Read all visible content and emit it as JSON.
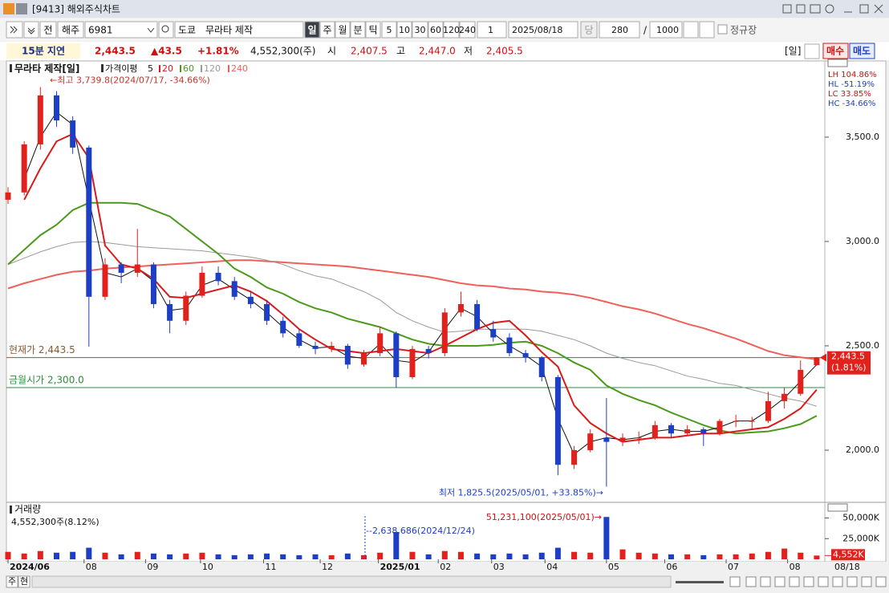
{
  "window": {
    "title": "[9413] 해외주식차트"
  },
  "toolbar": {
    "prev": "전",
    "market": "해주",
    "code": "6981",
    "exchange": "도쿄",
    "name": "무라타 제작",
    "periods": [
      "일",
      "주",
      "월",
      "분",
      "틱"
    ],
    "intervals": [
      "5",
      "10",
      "30",
      "60",
      "120",
      "240"
    ],
    "unit": "1",
    "date": "2025/08/18",
    "today": "당",
    "count": "280",
    "slash": "/",
    "max": "1000",
    "session": "정규장"
  },
  "quote": {
    "delay": "15분 지연",
    "price": "2,443.5",
    "change": "▲43.5",
    "rate": "+1.81%",
    "volume": "4,552,300(주)",
    "open_label": "시",
    "open": "2,407.5",
    "high_label": "고",
    "high": "2,447.0",
    "low_label": "저",
    "low": "2,405.5",
    "period": "[일]",
    "buy": "매수",
    "sell": "매도"
  },
  "chart_data": [
    {
      "type": "candlestick",
      "title": "무라타 제작[일]",
      "ma_title": "가격이평",
      "open": [
        3200,
        3235,
        3465,
        3700,
        3580,
        3450,
        2735,
        2890,
        2850,
        2890,
        2700,
        2620,
        2740,
        2850,
        2810,
        2735,
        2700,
        2620,
        2560,
        2500,
        2485,
        2500,
        2410,
        2465,
        2560,
        2350,
        2485,
        2465,
        2660,
        2700,
        2580,
        2540,
        2465,
        2445,
        2350,
        1930,
        2000,
        2060,
        2040,
        2060,
        2060,
        2120,
        2080,
        2100,
        2080,
        2140,
        2140,
        2140,
        2235,
        2270,
        2407.5
      ],
      "high": [
        3260,
        3480,
        3739.8,
        3720,
        3600,
        3460,
        2920,
        2900,
        3060,
        2900,
        2720,
        2760,
        2880,
        2880,
        2830,
        2760,
        2720,
        2640,
        2580,
        2520,
        2520,
        2510,
        2480,
        2590,
        2570,
        2500,
        2500,
        2680,
        2760,
        2720,
        2620,
        2560,
        2480,
        2450,
        2360,
        2020,
        2100,
        2250,
        2080,
        2090,
        2140,
        2130,
        2120,
        2110,
        2150,
        2170,
        2160,
        2280,
        2300,
        2430,
        2447.0
      ],
      "low": [
        3180,
        3220,
        3440,
        3550,
        3420,
        2496,
        2720,
        2800,
        2830,
        2680,
        2560,
        2600,
        2730,
        2790,
        2720,
        2680,
        2600,
        2540,
        2490,
        2460,
        2470,
        2390,
        2400,
        2450,
        2300,
        2340,
        2440,
        2450,
        2640,
        2570,
        2520,
        2450,
        2420,
        2330,
        1880,
        1910,
        1990,
        1825.5,
        2020,
        2030,
        2050,
        2060,
        2070,
        2020,
        2070,
        2110,
        2100,
        2130,
        2200,
        2260,
        2405.5
      ],
      "close": [
        3235,
        3465,
        3700,
        3580,
        3450,
        2735,
        2890,
        2850,
        2890,
        2700,
        2620,
        2740,
        2850,
        2810,
        2735,
        2700,
        2620,
        2560,
        2500,
        2485,
        2500,
        2410,
        2465,
        2560,
        2350,
        2485,
        2465,
        2660,
        2700,
        2580,
        2540,
        2465,
        2445,
        2350,
        1930,
        2000,
        2080,
        2040,
        2060,
        2060,
        2120,
        2080,
        2100,
        2080,
        2140,
        2140,
        2140,
        2235,
        2270,
        2385,
        2443.5
      ],
      "up_color": "#e3211c",
      "down_color": "#1d3fc6",
      "series": [
        {
          "name": "5",
          "color": "#111111",
          "width": 1,
          "values": [
            null,
            3300,
            3500,
            3620,
            3560,
            3200,
            2850,
            2830,
            2870,
            2810,
            2670,
            2680,
            2790,
            2820,
            2770,
            2720,
            2660,
            2590,
            2530,
            2490,
            2495,
            2450,
            2440,
            2510,
            2430,
            2420,
            2470,
            2580,
            2680,
            2640,
            2560,
            2500,
            2455,
            2400,
            2150,
            1980,
            2040,
            2060,
            2050,
            2060,
            2090,
            2100,
            2090,
            2090,
            2110,
            2140,
            2140,
            2190,
            2250,
            2330,
            2410
          ]
        },
        {
          "name": "20",
          "color": "#d91a1a",
          "width": 2,
          "values": [
            null,
            3200,
            3350,
            3480,
            3515,
            3400,
            2980,
            2890,
            2870,
            2820,
            2735,
            2730,
            2750,
            2770,
            2790,
            2760,
            2715,
            2650,
            2580,
            2530,
            2485,
            2475,
            2465,
            2475,
            2485,
            2475,
            2465,
            2500,
            2540,
            2580,
            2610,
            2620,
            2550,
            2470,
            2400,
            2215,
            2130,
            2080,
            2040,
            2050,
            2060,
            2060,
            2070,
            2080,
            2080,
            2090,
            2100,
            2110,
            2150,
            2200,
            2290
          ]
        },
        {
          "name": "60",
          "color": "#4c9a1c",
          "width": 2,
          "values": [
            2890,
            2960,
            3030,
            3080,
            3150,
            3185,
            3185,
            3185,
            3180,
            3150,
            3120,
            3060,
            3000,
            2940,
            2870,
            2830,
            2780,
            2750,
            2710,
            2680,
            2660,
            2630,
            2610,
            2590,
            2560,
            2530,
            2510,
            2500,
            2500,
            2500,
            2505,
            2515,
            2520,
            2500,
            2465,
            2420,
            2385,
            2310,
            2270,
            2240,
            2215,
            2180,
            2150,
            2120,
            2095,
            2080,
            2085,
            2090,
            2105,
            2125,
            2165
          ]
        },
        {
          "name": "120",
          "color": "#9a9a9a",
          "width": 1,
          "values": [
            2890,
            2920,
            2950,
            2975,
            2995,
            3000,
            2995,
            2985,
            2975,
            2970,
            2965,
            2960,
            2955,
            2945,
            2935,
            2925,
            2910,
            2890,
            2860,
            2835,
            2820,
            2790,
            2760,
            2720,
            2660,
            2620,
            2590,
            2565,
            2570,
            2580,
            2580,
            2580,
            2580,
            2570,
            2550,
            2530,
            2500,
            2465,
            2440,
            2420,
            2405,
            2380,
            2355,
            2340,
            2320,
            2310,
            2290,
            2270,
            2250,
            2235,
            2210
          ]
        },
        {
          "name": "240",
          "color": "#f0605a",
          "width": 2,
          "values": [
            2775,
            2800,
            2820,
            2840,
            2855,
            2860,
            2870,
            2875,
            2880,
            2885,
            2890,
            2895,
            2900,
            2905,
            2910,
            2910,
            2905,
            2900,
            2895,
            2890,
            2885,
            2880,
            2870,
            2860,
            2850,
            2840,
            2830,
            2815,
            2800,
            2790,
            2785,
            2775,
            2770,
            2760,
            2755,
            2745,
            2730,
            2710,
            2690,
            2675,
            2655,
            2630,
            2605,
            2585,
            2560,
            2535,
            2505,
            2475,
            2455,
            2445,
            2435
          ]
        }
      ],
      "xlim": [
        -0.1,
        50.5
      ],
      "xticks": [
        {
          "value": 0,
          "label": "2024/06"
        },
        {
          "value": 4.7,
          "label": "08"
        },
        {
          "value": 8.5,
          "label": "09"
        },
        {
          "value": 11.9,
          "label": "10"
        },
        {
          "value": 15.8,
          "label": "11"
        },
        {
          "value": 19.3,
          "label": "12"
        },
        {
          "value": 22.9,
          "label": "2025/01"
        },
        {
          "value": 26.6,
          "label": "02"
        },
        {
          "value": 29.9,
          "label": "03"
        },
        {
          "value": 33.2,
          "label": "04"
        },
        {
          "value": 37.0,
          "label": "05"
        },
        {
          "value": 40.6,
          "label": "06"
        },
        {
          "value": 44.4,
          "label": "07"
        },
        {
          "value": 48.2,
          "label": "08"
        }
      ],
      "ylim": [
        1754,
        3861
      ],
      "yticks": [
        {
          "value": 2000,
          "label": "2,000.0"
        },
        {
          "value": 2500,
          "label": "2,500.0"
        },
        {
          "value": 3000,
          "label": "3,000.0"
        },
        {
          "value": 3500,
          "label": "3,500.0"
        }
      ],
      "reference_lines": [
        {
          "label": "현재가 2,443.5",
          "value": 2443.5,
          "color": "#8b5a2b"
        },
        {
          "label": "금월시가 2,300.0",
          "value": 2300.0,
          "color": "#2e8b3c"
        }
      ],
      "annotations": [
        {
          "text": "←최고 3,739.8(2024/07/17, -34.66%)",
          "value": 3739.8,
          "color": "#c0392b"
        },
        {
          "text": "최저 1,825.5(2025/05/01, +33.85%)→",
          "value": 1825.5,
          "color": "#1d3fc6"
        }
      ],
      "price_tag": {
        "value": 2443.5,
        "label": "2,443.5",
        "change": "(1.81%)"
      },
      "stats": [
        "LH 104.86%",
        "HL -51.19%",
        "LC  33.85%",
        "HC -34.66%"
      ]
    },
    {
      "type": "bar",
      "title": "거래량",
      "subtitle": "4,552,300주(8.12%)",
      "values": [
        9000,
        7000,
        10000,
        8000,
        9000,
        14000,
        8000,
        6000,
        9000,
        7000,
        6000,
        7000,
        8000,
        6000,
        5000,
        6000,
        7000,
        6000,
        5000,
        6000,
        5000,
        7000,
        5000,
        8000,
        33000,
        9000,
        6000,
        10000,
        9000,
        7000,
        6000,
        7000,
        6000,
        8000,
        14000,
        9000,
        8000,
        51231.1,
        12000,
        8000,
        7000,
        6000,
        6000,
        5000,
        6000,
        6000,
        7000,
        9000,
        13000,
        8000,
        4552.3
      ],
      "ylim": [
        0,
        68000
      ],
      "yticks": [
        {
          "value": 25000,
          "label": "25,000K"
        },
        {
          "value": 50000,
          "label": "50,000K"
        }
      ],
      "last_tag": {
        "value": 4552.3,
        "label": "4,552K"
      },
      "annotations": [
        "51,231,100(2025/05/01)→",
        "--2,638,686(2024/12/24)"
      ]
    }
  ],
  "footer": {
    "week": "주",
    "current": "현",
    "date": "08/18"
  }
}
